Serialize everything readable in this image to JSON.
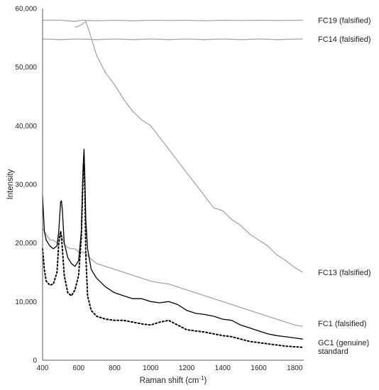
{
  "chart_data": {
    "type": "line",
    "title": "",
    "xlabel": "Raman shift (cm",
    "xlabel_sup": "-1",
    "xlabel_end": ")",
    "ylabel": "Intensity",
    "xlim": [
      400,
      1850
    ],
    "ylim": [
      0,
      60000
    ],
    "x_ticks": [
      400,
      600,
      800,
      1000,
      1200,
      1400,
      1600,
      1800
    ],
    "y_ticks": [
      0,
      10000,
      20000,
      30000,
      40000,
      50000,
      60000
    ],
    "x_tick_labels": [
      "400",
      "600",
      "800",
      "1000",
      "1200",
      "1400",
      "1600",
      "1800"
    ],
    "y_tick_labels": [
      "0",
      "10,000",
      "20,000",
      "30,000",
      "40,000",
      "50,000",
      "60,000"
    ],
    "grid": false,
    "legend": "direct labels at right end of each line",
    "colors": {
      "gray": "#a6a6a6",
      "black": "#000000"
    },
    "series": [
      {
        "name": "FC19 (falsified)",
        "color": "#a6a6a6",
        "style": "solid",
        "x": [
          400,
          500,
          580,
          620,
          700,
          800,
          900,
          1000,
          1100,
          1200,
          1300,
          1400,
          1500,
          1600,
          1700,
          1845
        ],
        "y": [
          58000,
          58000,
          57800,
          58000,
          57900,
          58000,
          57900,
          58000,
          57950,
          58000,
          57900,
          58000,
          57950,
          58000,
          57950,
          58000
        ]
      },
      {
        "name": "FC14 (falsified)",
        "color": "#a6a6a6",
        "style": "solid",
        "x": [
          400,
          500,
          600,
          700,
          800,
          900,
          1000,
          1100,
          1200,
          1300,
          1400,
          1500,
          1600,
          1700,
          1845
        ],
        "y": [
          54800,
          54700,
          54800,
          54700,
          54800,
          54700,
          54800,
          54700,
          54800,
          54700,
          54800,
          54700,
          54800,
          54700,
          54800
        ]
      },
      {
        "name": "FC13 (falsified)",
        "color": "#a6a6a6",
        "style": "solid",
        "x": [
          580,
          600,
          620,
          640,
          660,
          680,
          700,
          750,
          800,
          850,
          900,
          950,
          1000,
          1050,
          1100,
          1150,
          1200,
          1250,
          1300,
          1350,
          1400,
          1450,
          1500,
          1550,
          1600,
          1650,
          1700,
          1750,
          1800,
          1845
        ],
        "y": [
          56800,
          57000,
          57300,
          57800,
          56000,
          54000,
          52000,
          49000,
          47000,
          44500,
          42500,
          41000,
          40000,
          38000,
          36000,
          34000,
          32000,
          30000,
          28000,
          26000,
          25500,
          24000,
          23000,
          21500,
          20500,
          19500,
          18000,
          17000,
          15800,
          15000
        ]
      },
      {
        "name": "FC1 (falsified)",
        "color": "#a6a6a6",
        "style": "solid",
        "x": [
          400,
          420,
          440,
          460,
          480,
          500,
          520,
          540,
          560,
          580,
          600,
          620,
          640,
          660,
          680,
          700,
          750,
          800,
          850,
          900,
          950,
          1000,
          1050,
          1100,
          1150,
          1200,
          1250,
          1300,
          1350,
          1400,
          1450,
          1500,
          1550,
          1600,
          1650,
          1700,
          1750,
          1800,
          1845
        ],
        "y": [
          22500,
          21500,
          20500,
          20500,
          20000,
          22000,
          19800,
          19200,
          19000,
          19000,
          18500,
          18500,
          18200,
          17500,
          17000,
          16500,
          16000,
          15500,
          15000,
          14500,
          14000,
          13500,
          13200,
          13000,
          12500,
          12000,
          11500,
          11000,
          10500,
          10000,
          9500,
          9000,
          8500,
          8000,
          7500,
          7000,
          6500,
          6000,
          5800
        ]
      },
      {
        "name": "GC1 (genuine)",
        "color": "#000000",
        "style": "solid",
        "x": [
          400,
          410,
          420,
          440,
          460,
          480,
          490,
          500,
          505,
          510,
          520,
          540,
          560,
          580,
          600,
          615,
          625,
          630,
          635,
          640,
          650,
          670,
          700,
          750,
          800,
          850,
          900,
          950,
          1000,
          1050,
          1100,
          1150,
          1200,
          1250,
          1300,
          1350,
          1400,
          1450,
          1500,
          1550,
          1600,
          1650,
          1700,
          1750,
          1800,
          1845
        ],
        "y": [
          28000,
          22000,
          20500,
          19500,
          19000,
          19500,
          22000,
          27000,
          27200,
          25500,
          20000,
          17500,
          16500,
          16000,
          17000,
          22000,
          33000,
          36000,
          31000,
          24000,
          19000,
          15500,
          14000,
          12500,
          11500,
          11000,
          10500,
          10500,
          10000,
          9800,
          10000,
          9500,
          8500,
          8000,
          7800,
          7500,
          7000,
          6800,
          6000,
          5500,
          5000,
          4500,
          4200,
          4000,
          3800,
          3600
        ]
      },
      {
        "name": "standard",
        "color": "#000000",
        "style": "dotted",
        "x": [
          400,
          410,
          420,
          440,
          460,
          480,
          490,
          500,
          505,
          510,
          520,
          540,
          560,
          580,
          600,
          615,
          625,
          630,
          635,
          640,
          650,
          670,
          700,
          750,
          800,
          850,
          900,
          950,
          1000,
          1050,
          1100,
          1150,
          1200,
          1250,
          1300,
          1350,
          1400,
          1450,
          1500,
          1550,
          1600,
          1650,
          1700,
          1750,
          1800,
          1845
        ],
        "y": [
          19000,
          15500,
          13500,
          12800,
          13000,
          15000,
          20000,
          22000,
          21000,
          19000,
          14500,
          11500,
          11000,
          12000,
          14500,
          21000,
          32000,
          33500,
          29000,
          18000,
          11000,
          8500,
          7500,
          7000,
          6800,
          6800,
          6500,
          6200,
          6000,
          6500,
          6800,
          6000,
          5200,
          5000,
          4800,
          4500,
          4200,
          4000,
          3600,
          3200,
          3000,
          2800,
          2600,
          2400,
          2300,
          2200
        ]
      }
    ]
  }
}
